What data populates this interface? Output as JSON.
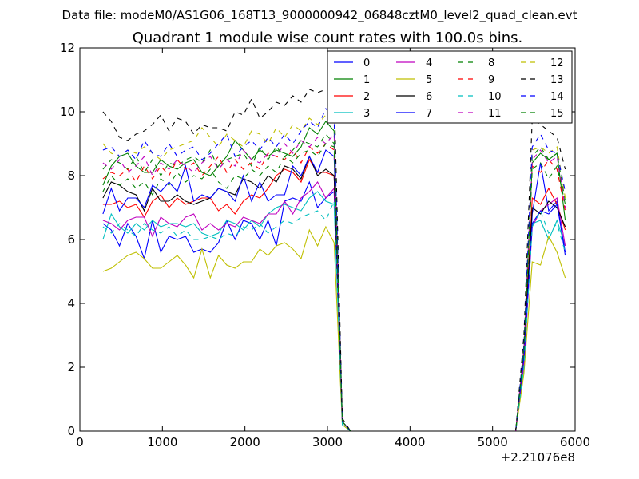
{
  "header": {
    "file_title": "Data file: modeM0/AS1G06_168T13_9000000942_06848cztM0_level2_quad_clean.evt",
    "plot_title": "Quadrant 1 module wise count rates with 100.0s bins."
  },
  "chart_data": {
    "type": "line",
    "title": "Quadrant 1 module wise count rates with 100.0s bins.",
    "xlabel": "",
    "ylabel": "",
    "xlim": [
      0,
      6000
    ],
    "ylim": [
      0,
      12
    ],
    "x_offset_label": "+2.21076e8",
    "x_ticks": [
      "0",
      "1000",
      "2000",
      "3000",
      "4000",
      "5000",
      "6000"
    ],
    "y_ticks": [
      "0",
      "2",
      "4",
      "6",
      "8",
      "10",
      "12"
    ],
    "grid": false,
    "legend_position": "top-right",
    "x": [
      280,
      380,
      480,
      580,
      680,
      780,
      880,
      980,
      1080,
      1180,
      1280,
      1380,
      1480,
      1580,
      1680,
      1780,
      1880,
      1980,
      2080,
      2180,
      2280,
      2380,
      2480,
      2580,
      2680,
      2780,
      2880,
      2980,
      3080,
      3180,
      3280,
      3380,
      3480,
      3580,
      3680,
      3780,
      3880,
      3980,
      4080,
      4180,
      4280,
      4380,
      4480,
      4580,
      4680,
      4780,
      4880,
      4980,
      5080,
      5180,
      5280,
      5380,
      5480,
      5580,
      5680,
      5780,
      5880
    ],
    "series": [
      {
        "name": "0",
        "color": "#0000ff",
        "dash": false,
        "values": [
          6.5,
          6.3,
          5.8,
          6.5,
          6.1,
          5.4,
          6.6,
          5.6,
          6.1,
          6.0,
          6.1,
          5.6,
          5.7,
          5.6,
          5.9,
          6.6,
          6.0,
          6.6,
          6.5,
          6.0,
          6.6,
          5.8,
          7.2,
          7.3,
          7.2,
          7.8,
          7.0,
          7.3,
          7.5,
          0.3,
          0,
          0,
          0,
          0,
          0,
          0,
          0,
          0,
          0,
          0,
          0,
          0,
          0,
          0,
          0,
          0,
          0,
          0,
          0,
          0,
          0,
          2.2,
          6.8,
          8.4,
          6.9,
          7.2,
          5.5
        ]
      },
      {
        "name": "1",
        "color": "#008000",
        "dash": false,
        "values": [
          7.7,
          8.3,
          8.6,
          8.7,
          8.3,
          8.1,
          8.1,
          8.5,
          8.3,
          8.2,
          8.4,
          8.5,
          8.1,
          8.0,
          8.3,
          8.6,
          9.1,
          8.8,
          8.5,
          8.8,
          8.6,
          8.8,
          8.7,
          8.6,
          8.9,
          9.5,
          9.3,
          9.7,
          9.4,
          0.3,
          0,
          0,
          0,
          0,
          0,
          0,
          0,
          0,
          0,
          0,
          0,
          0,
          0,
          0,
          0,
          0,
          0,
          0,
          0,
          0,
          0,
          2.5,
          8.4,
          8.7,
          8.5,
          8.7,
          6.6
        ]
      },
      {
        "name": "2",
        "color": "#ff0000",
        "dash": false,
        "values": [
          7.1,
          7.1,
          7.2,
          7.0,
          7.1,
          6.7,
          7.2,
          7.4,
          7.0,
          7.3,
          7.1,
          7.2,
          7.3,
          7.3,
          6.9,
          7.1,
          6.8,
          7.2,
          7.4,
          7.3,
          7.6,
          8.0,
          8.2,
          8.1,
          7.8,
          8.5,
          8.1,
          8.1,
          8.0,
          0.3,
          0,
          0,
          0,
          0,
          0,
          0,
          0,
          0,
          0,
          0,
          0,
          0,
          0,
          0,
          0,
          0,
          0,
          0,
          0,
          0,
          0,
          2.3,
          7.3,
          7.1,
          7.6,
          7.1,
          6.3
        ]
      },
      {
        "name": "3",
        "color": "#00bfbf",
        "dash": false,
        "values": [
          6.0,
          6.8,
          6.4,
          6.2,
          6.5,
          6.3,
          6.6,
          6.4,
          6.5,
          6.5,
          6.4,
          6.5,
          6.2,
          6.1,
          6.2,
          6.6,
          6.5,
          6.3,
          6.6,
          6.4,
          6.8,
          7.0,
          7.1,
          7.0,
          6.9,
          7.3,
          7.5,
          7.2,
          7.1,
          0.2,
          0,
          0,
          0,
          0,
          0,
          0,
          0,
          0,
          0,
          0,
          0,
          0,
          0,
          0,
          0,
          0,
          0,
          0,
          0,
          0,
          0,
          2.0,
          6.5,
          6.6,
          6.0,
          6.6,
          5.8
        ]
      },
      {
        "name": "4",
        "color": "#bf00bf",
        "dash": false,
        "values": [
          6.6,
          6.5,
          6.3,
          6.6,
          6.7,
          6.7,
          6.1,
          6.7,
          6.5,
          6.4,
          6.7,
          6.8,
          6.3,
          6.5,
          6.3,
          6.5,
          6.4,
          6.7,
          6.6,
          6.5,
          6.8,
          6.8,
          7.2,
          6.8,
          7.3,
          7.5,
          7.8,
          7.3,
          7.6,
          0.3,
          0,
          0,
          0,
          0,
          0,
          0,
          0,
          0,
          0,
          0,
          0,
          0,
          0,
          0,
          0,
          0,
          0,
          0,
          0,
          0,
          0,
          2.1,
          6.4,
          6.9,
          7.1,
          7.3,
          5.8
        ]
      },
      {
        "name": "5",
        "color": "#bfbf00",
        "dash": false,
        "values": [
          5.0,
          5.1,
          5.3,
          5.5,
          5.6,
          5.4,
          5.1,
          5.1,
          5.3,
          5.5,
          5.2,
          4.8,
          5.7,
          4.8,
          5.5,
          5.2,
          5.1,
          5.3,
          5.3,
          5.7,
          5.5,
          5.8,
          5.9,
          5.7,
          5.4,
          6.3,
          5.8,
          6.4,
          5.9,
          0.2,
          0,
          0,
          0,
          0,
          0,
          0,
          0,
          0,
          0,
          0,
          0,
          0,
          0,
          0,
          0,
          0,
          0,
          0,
          0,
          0,
          0,
          1.8,
          5.3,
          5.2,
          6.1,
          5.6,
          4.8
        ]
      },
      {
        "name": "6",
        "color": "#000000",
        "dash": false,
        "values": [
          7.3,
          7.8,
          7.7,
          7.5,
          7.4,
          6.9,
          7.6,
          7.2,
          7.2,
          7.4,
          7.2,
          7.1,
          7.2,
          7.3,
          7.6,
          7.5,
          7.4,
          7.9,
          7.8,
          7.6,
          8.0,
          7.8,
          8.3,
          8.2,
          7.9,
          8.6,
          8.0,
          8.2,
          8.0,
          0.3,
          0,
          0,
          0,
          0,
          0,
          0,
          0,
          0,
          0,
          0,
          0,
          0,
          0,
          0,
          0,
          0,
          0,
          0,
          0,
          0,
          0,
          2.4,
          7.0,
          6.8,
          7.2,
          7.0,
          6.4
        ]
      },
      {
        "name": "7",
        "color": "#0000ff",
        "dash": false,
        "values": [
          6.8,
          7.6,
          6.9,
          7.3,
          7.3,
          7.0,
          7.7,
          7.5,
          7.8,
          7.5,
          8.3,
          7.2,
          7.4,
          7.3,
          7.6,
          7.5,
          7.2,
          8.0,
          7.2,
          7.8,
          7.2,
          7.4,
          7.4,
          8.3,
          8.0,
          8.6,
          8.1,
          8.8,
          8.6,
          0.3,
          0,
          0,
          0,
          0,
          0,
          0,
          0,
          0,
          0,
          0,
          0,
          0,
          0,
          0,
          0,
          0,
          0,
          0,
          0,
          0,
          0,
          2.3,
          6.5,
          6.9,
          6.8,
          7.1,
          5.6
        ]
      },
      {
        "name": "8",
        "color": "#008000",
        "dash": true,
        "values": [
          8.2,
          8.5,
          8.4,
          8.2,
          8.6,
          8.1,
          8.5,
          8.0,
          8.4,
          8.3,
          8.5,
          8.6,
          8.4,
          8.8,
          8.2,
          8.5,
          8.6,
          8.7,
          8.3,
          8.9,
          8.5,
          8.9,
          8.6,
          8.8,
          9.1,
          9.0,
          8.9,
          9.3,
          9.0,
          0.3,
          0,
          0,
          0,
          0,
          0,
          0,
          0,
          0,
          0,
          0,
          0,
          0,
          0,
          0,
          0,
          0,
          0,
          0,
          0,
          0,
          0,
          2.6,
          8.6,
          8.9,
          8.5,
          8.7,
          7.2
        ]
      },
      {
        "name": "9",
        "color": "#ff0000",
        "dash": true,
        "values": [
          7.9,
          8.1,
          8.0,
          8.2,
          7.8,
          8.3,
          7.9,
          8.3,
          8.0,
          8.5,
          8.2,
          8.4,
          8.0,
          8.3,
          8.6,
          8.1,
          8.5,
          8.2,
          8.4,
          8.2,
          8.7,
          8.6,
          8.5,
          8.8,
          8.4,
          8.9,
          8.7,
          9.0,
          8.8,
          0.3,
          0,
          0,
          0,
          0,
          0,
          0,
          0,
          0,
          0,
          0,
          0,
          0,
          0,
          0,
          0,
          0,
          0,
          0,
          0,
          0,
          0,
          2.5,
          8.3,
          8.1,
          8.5,
          8.2,
          6.9
        ]
      },
      {
        "name": "10",
        "color": "#00bfbf",
        "dash": true,
        "values": [
          6.4,
          6.2,
          6.5,
          6.3,
          6.1,
          6.5,
          6.3,
          6.2,
          6.4,
          6.1,
          6.3,
          6.0,
          6.0,
          6.1,
          6.0,
          6.2,
          6.1,
          6.4,
          6.3,
          6.5,
          6.2,
          6.4,
          6.6,
          6.5,
          6.7,
          6.8,
          6.9,
          6.6,
          7.2,
          0.2,
          0,
          0,
          0,
          0,
          0,
          0,
          0,
          0,
          0,
          0,
          0,
          0,
          0,
          0,
          0,
          0,
          0,
          0,
          0,
          0,
          0,
          2.0,
          6.4,
          6.9,
          6.2,
          6.5,
          5.6
        ]
      },
      {
        "name": "11",
        "color": "#bf00bf",
        "dash": true,
        "values": [
          8.4,
          8.2,
          8.5,
          8.1,
          8.3,
          8.6,
          8.0,
          8.4,
          8.2,
          8.5,
          8.3,
          8.1,
          8.4,
          8.6,
          8.2,
          8.5,
          8.3,
          8.8,
          8.5,
          8.4,
          8.7,
          8.6,
          9.0,
          8.7,
          9.1,
          8.9,
          9.2,
          9.0,
          9.3,
          0.3,
          0,
          0,
          0,
          0,
          0,
          0,
          0,
          0,
          0,
          0,
          0,
          0,
          0,
          0,
          0,
          0,
          0,
          0,
          0,
          0,
          0,
          2.6,
          8.5,
          8.8,
          8.4,
          8.6,
          7.0
        ]
      },
      {
        "name": "12",
        "color": "#bfbf00",
        "dash": true,
        "values": [
          9.0,
          8.7,
          8.6,
          8.8,
          8.7,
          8.9,
          8.7,
          8.5,
          8.8,
          8.9,
          9.0,
          9.1,
          9.5,
          9.2,
          8.9,
          9.3,
          9.1,
          8.9,
          9.4,
          9.3,
          9.0,
          9.5,
          9.2,
          9.6,
          9.4,
          9.8,
          9.6,
          9.9,
          9.7,
          0.3,
          0,
          0,
          0,
          0,
          0,
          0,
          0,
          0,
          0,
          0,
          0,
          0,
          0,
          0,
          0,
          0,
          0,
          0,
          0,
          0,
          0,
          2.7,
          8.8,
          8.9,
          8.7,
          8.9,
          7.3
        ]
      },
      {
        "name": "13",
        "color": "#000000",
        "dash": true,
        "values": [
          10.0,
          9.7,
          9.2,
          9.1,
          9.3,
          9.4,
          9.6,
          9.9,
          9.4,
          9.8,
          9.7,
          9.3,
          9.6,
          9.5,
          9.5,
          9.4,
          10.0,
          9.9,
          10.4,
          9.8,
          10.0,
          10.3,
          10.2,
          10.5,
          10.3,
          10.7,
          10.6,
          10.7,
          10.7,
          0.4,
          0,
          0,
          0,
          0,
          0,
          0,
          0,
          0,
          0,
          0,
          0,
          0,
          0,
          0,
          0,
          0,
          0,
          0,
          0,
          0,
          0,
          3.0,
          9.8,
          9.6,
          9.4,
          9.2,
          8.2
        ]
      },
      {
        "name": "14",
        "color": "#0000ff",
        "dash": true,
        "values": [
          8.8,
          8.9,
          8.6,
          8.8,
          8.5,
          9.1,
          8.7,
          8.6,
          9.0,
          8.6,
          8.8,
          8.9,
          8.5,
          8.7,
          9.0,
          9.3,
          8.6,
          8.9,
          9.1,
          8.8,
          9.2,
          8.9,
          9.3,
          9.0,
          9.4,
          9.7,
          9.5,
          10.1,
          9.8,
          0.3,
          0,
          0,
          0,
          0,
          0,
          0,
          0,
          0,
          0,
          0,
          0,
          0,
          0,
          0,
          0,
          0,
          0,
          0,
          0,
          0,
          0,
          2.7,
          8.9,
          9.3,
          8.8,
          8.7,
          7.5
        ]
      },
      {
        "name": "15",
        "color": "#008000",
        "dash": true,
        "values": [
          7.5,
          8.0,
          7.7,
          7.9,
          7.6,
          7.8,
          7.4,
          7.9,
          7.7,
          8.1,
          7.8,
          8.0,
          7.9,
          8.2,
          7.8,
          7.6,
          8.0,
          7.9,
          8.2,
          8.0,
          8.3,
          8.1,
          8.6,
          8.4,
          8.7,
          8.8,
          8.6,
          9.0,
          8.9,
          0.3,
          0,
          0,
          0,
          0,
          0,
          0,
          0,
          0,
          0,
          0,
          0,
          0,
          0,
          0,
          0,
          0,
          0,
          0,
          0,
          0,
          0,
          2.5,
          8.2,
          8.4,
          7.9,
          8.3,
          7.1
        ]
      }
    ]
  }
}
